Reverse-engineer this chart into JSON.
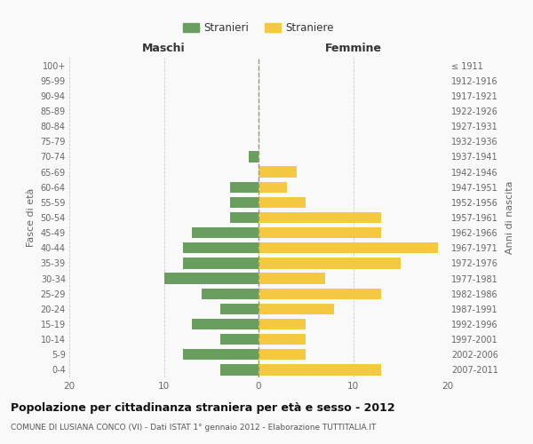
{
  "age_groups": [
    "0-4",
    "5-9",
    "10-14",
    "15-19",
    "20-24",
    "25-29",
    "30-34",
    "35-39",
    "40-44",
    "45-49",
    "50-54",
    "55-59",
    "60-64",
    "65-69",
    "70-74",
    "75-79",
    "80-84",
    "85-89",
    "90-94",
    "95-99",
    "100+"
  ],
  "birth_years": [
    "2007-2011",
    "2002-2006",
    "1997-2001",
    "1992-1996",
    "1987-1991",
    "1982-1986",
    "1977-1981",
    "1972-1976",
    "1967-1971",
    "1962-1966",
    "1957-1961",
    "1952-1956",
    "1947-1951",
    "1942-1946",
    "1937-1941",
    "1932-1936",
    "1927-1931",
    "1922-1926",
    "1917-1921",
    "1912-1916",
    "≤ 1911"
  ],
  "males": [
    4,
    8,
    4,
    7,
    4,
    6,
    10,
    8,
    8,
    7,
    3,
    3,
    3,
    0,
    1,
    0,
    0,
    0,
    0,
    0,
    0
  ],
  "females": [
    13,
    5,
    5,
    5,
    8,
    13,
    7,
    15,
    19,
    13,
    13,
    5,
    3,
    4,
    0,
    0,
    0,
    0,
    0,
    0,
    0
  ],
  "male_color": "#6a9e5e",
  "female_color": "#f5c842",
  "title": "Popolazione per cittadinanza straniera per età e sesso - 2012",
  "subtitle": "COMUNE DI LUSIANA CONCO (VI) - Dati ISTAT 1° gennaio 2012 - Elaborazione TUTTITALIA.IT",
  "xlabel_left": "Maschi",
  "xlabel_right": "Femmine",
  "ylabel_left": "Fasce di età",
  "ylabel_right": "Anni di nascita",
  "legend_male": "Stranieri",
  "legend_female": "Straniere",
  "xlim": 20,
  "background_color": "#f9f9f9",
  "grid_color": "#cccccc"
}
